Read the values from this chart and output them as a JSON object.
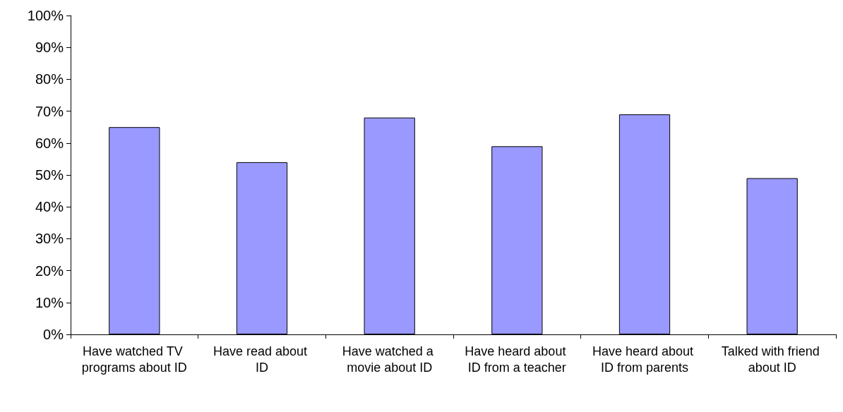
{
  "chart_data": {
    "type": "bar",
    "categories": [
      "Have watched TV programs about ID",
      "Have read about ID",
      "Have watched a movie about ID",
      "Have heard about ID from a teacher",
      "Have heard about ID from parents",
      "Talked with friend about ID"
    ],
    "values": [
      65,
      54,
      68,
      59,
      69,
      49
    ],
    "color": "#9999ff",
    "ylim": [
      0,
      100
    ],
    "yticks": [
      {
        "value": 0,
        "label": "0%"
      },
      {
        "value": 10,
        "label": "10%"
      },
      {
        "value": 20,
        "label": "20%"
      },
      {
        "value": 30,
        "label": "30%"
      },
      {
        "value": 40,
        "label": "40%"
      },
      {
        "value": 50,
        "label": "50%"
      },
      {
        "value": 60,
        "label": "60%"
      },
      {
        "value": 70,
        "label": "70%"
      },
      {
        "value": 80,
        "label": "80%"
      },
      {
        "value": 90,
        "label": "90%"
      },
      {
        "value": 100,
        "label": "100%"
      }
    ],
    "grid": false
  }
}
